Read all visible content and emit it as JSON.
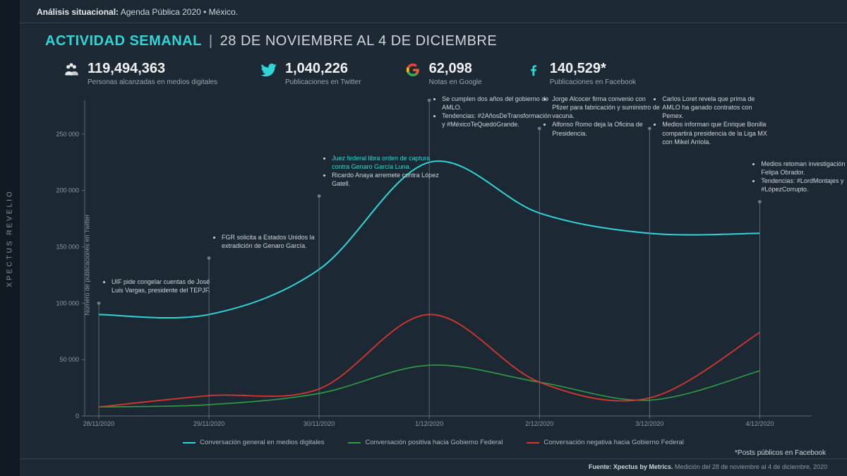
{
  "brand_rail": "XPECTUS REVELIO",
  "topbar": {
    "bold": "Análisis situacional:",
    "rest": " Agenda Pública 2020 • México."
  },
  "headline": {
    "accent": "ACTIVIDAD SEMANAL",
    "sep": "|",
    "range": "28 DE NOVIEMBRE AL 4 DE DICIEMBRE"
  },
  "stats": {
    "reach": {
      "value": "119,494,363",
      "label": "Personas alcanzadas en medios digitales",
      "icon": "people-icon",
      "color": "#e8e8e8"
    },
    "twitter": {
      "value": "1,040,226",
      "label": "Publicaciones en Twitter",
      "icon": "twitter-icon",
      "color": "#2fd6d6"
    },
    "google": {
      "value": "62,098",
      "label": "Notas en Google",
      "icon": "google-icon",
      "color": "#e85c3a"
    },
    "fb": {
      "value": "140,529*",
      "label": "Publicaciones en Facebook",
      "icon": "facebook-icon",
      "color": "#2fd6d6"
    }
  },
  "chart": {
    "type": "line",
    "background_color": "#1c2833",
    "axis_color": "#5a6a76",
    "marker_line_color": "#6a7a86",
    "ylabel": "Número de publicaciones en Twitter",
    "yticks": [
      0,
      50000,
      100000,
      150000,
      200000,
      250000
    ],
    "ytick_labels": [
      "0",
      "50 000",
      "100 000",
      "150 000",
      "200 000",
      "250 000"
    ],
    "ylim": [
      0,
      280000
    ],
    "xlabels": [
      "28/11/2020",
      "29/11/2020",
      "30/11/2020",
      "1/12/2020",
      "2/12/2020",
      "3/12/2020",
      "4/12/2020"
    ],
    "series": {
      "general": {
        "color": "#2fd6d6",
        "width": 2,
        "values": [
          90000,
          90000,
          130000,
          225000,
          180000,
          162000,
          162000
        ]
      },
      "positive": {
        "color": "#2e9e46",
        "width": 1.6,
        "values": [
          8000,
          10000,
          20000,
          45000,
          30000,
          14000,
          40000
        ]
      },
      "negative": {
        "color": "#d7362d",
        "width": 1.8,
        "values": [
          8000,
          18000,
          24000,
          90000,
          30000,
          16000,
          74000
        ]
      }
    },
    "markers": [
      {
        "xi": 0,
        "top_y": 100000,
        "lines": [
          "UIF pide congelar cuentas de José Luis Vargas, presidente del TEPJF."
        ]
      },
      {
        "xi": 1,
        "top_y": 140000,
        "lines": [
          "FGR solicita a Estados Unidos la extradición de Genaro García."
        ]
      },
      {
        "xi": 2,
        "top_y": 195000,
        "lines": [
          "<span class=\"hl\">Juez federal libra orden de captura contra Genaro García Luna.</span>",
          "Ricardo Anaya arremete contra López Gatell."
        ]
      },
      {
        "xi": 3,
        "top_y": 280000,
        "lines": [
          "Se cumplen dos años del gobierno de AMLO.",
          "Tendencias: #2AñosDeTransformación y #MéxicoTeQuedóGrande."
        ]
      },
      {
        "xi": 4,
        "top_y": 255000,
        "lines": [
          "Jorge Alcocer firma convenio con Pfizer  para fabricación y suministro de vacuna.",
          "Alfonso Romo deja la Oficina de Presidencia."
        ]
      },
      {
        "xi": 5,
        "top_y": 255000,
        "lines": [
          "Carlos Loret revela que prima de AMLO ha ganado contratos con Pemex.",
          "Medios informan que Enrique Bonilla compartirá presidencia de la Liga MX con Mikel Arriola."
        ]
      },
      {
        "xi": 6,
        "top_y": 190000,
        "lines": [
          "Medios retoman investigación de Felipa Obrador.",
          "Tendencias: #LordMontajes y #LópezCorrupto."
        ]
      }
    ]
  },
  "legend": {
    "general": "Conversación general en medios digitales",
    "positive": "Conversación positiva hacia Gobierno Federal",
    "negative": "Conversación negativa hacia Gobierno Federal"
  },
  "footnote": "*Posts públicos en Facebook",
  "source": {
    "bold": "Fuente: Xpectus by Metrics.",
    "rest": " Medición del 28 de noviembre al 4 de diciembre, 2020"
  }
}
